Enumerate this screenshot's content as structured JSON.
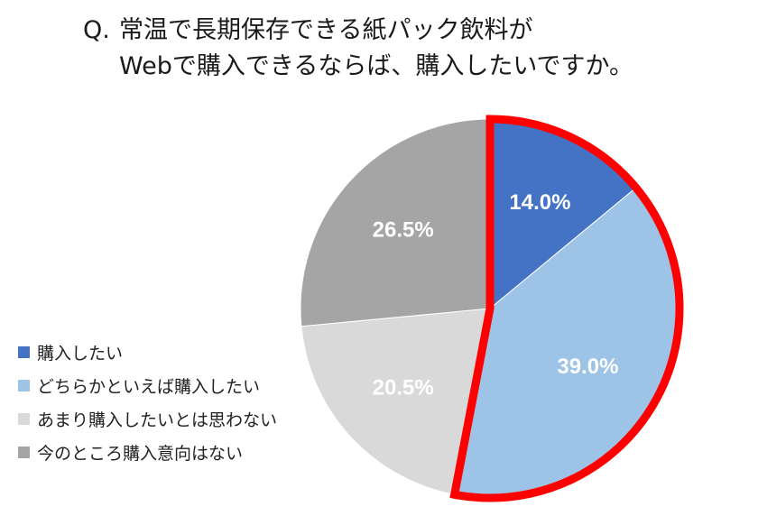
{
  "title": {
    "prefix": "Q.",
    "line1": "常温で長期保存できる紙パック飲料が",
    "line2": "Webで購入できるならば、購入したいですか。"
  },
  "chart_data": {
    "type": "pie",
    "title": "Q. 常温で長期保存できる紙パック飲料が Webで購入できるならば、購入したいですか。",
    "slices": [
      {
        "label": "購入したい",
        "value": 14.0,
        "display": "14.0%",
        "color": "#4472c4"
      },
      {
        "label": "どちらかといえば購入したい",
        "value": 39.0,
        "display": "39.0%",
        "color": "#9dc3e6"
      },
      {
        "label": "あまり購入したいとは思わない",
        "value": 20.5,
        "display": "20.5%",
        "color": "#d9d9d9"
      },
      {
        "label": "今のところ購入意向はない",
        "value": 26.5,
        "display": "26.5%",
        "color": "#a5a5a5"
      }
    ],
    "legend_position": "bottom-left",
    "highlight_color": "#ff0000"
  }
}
